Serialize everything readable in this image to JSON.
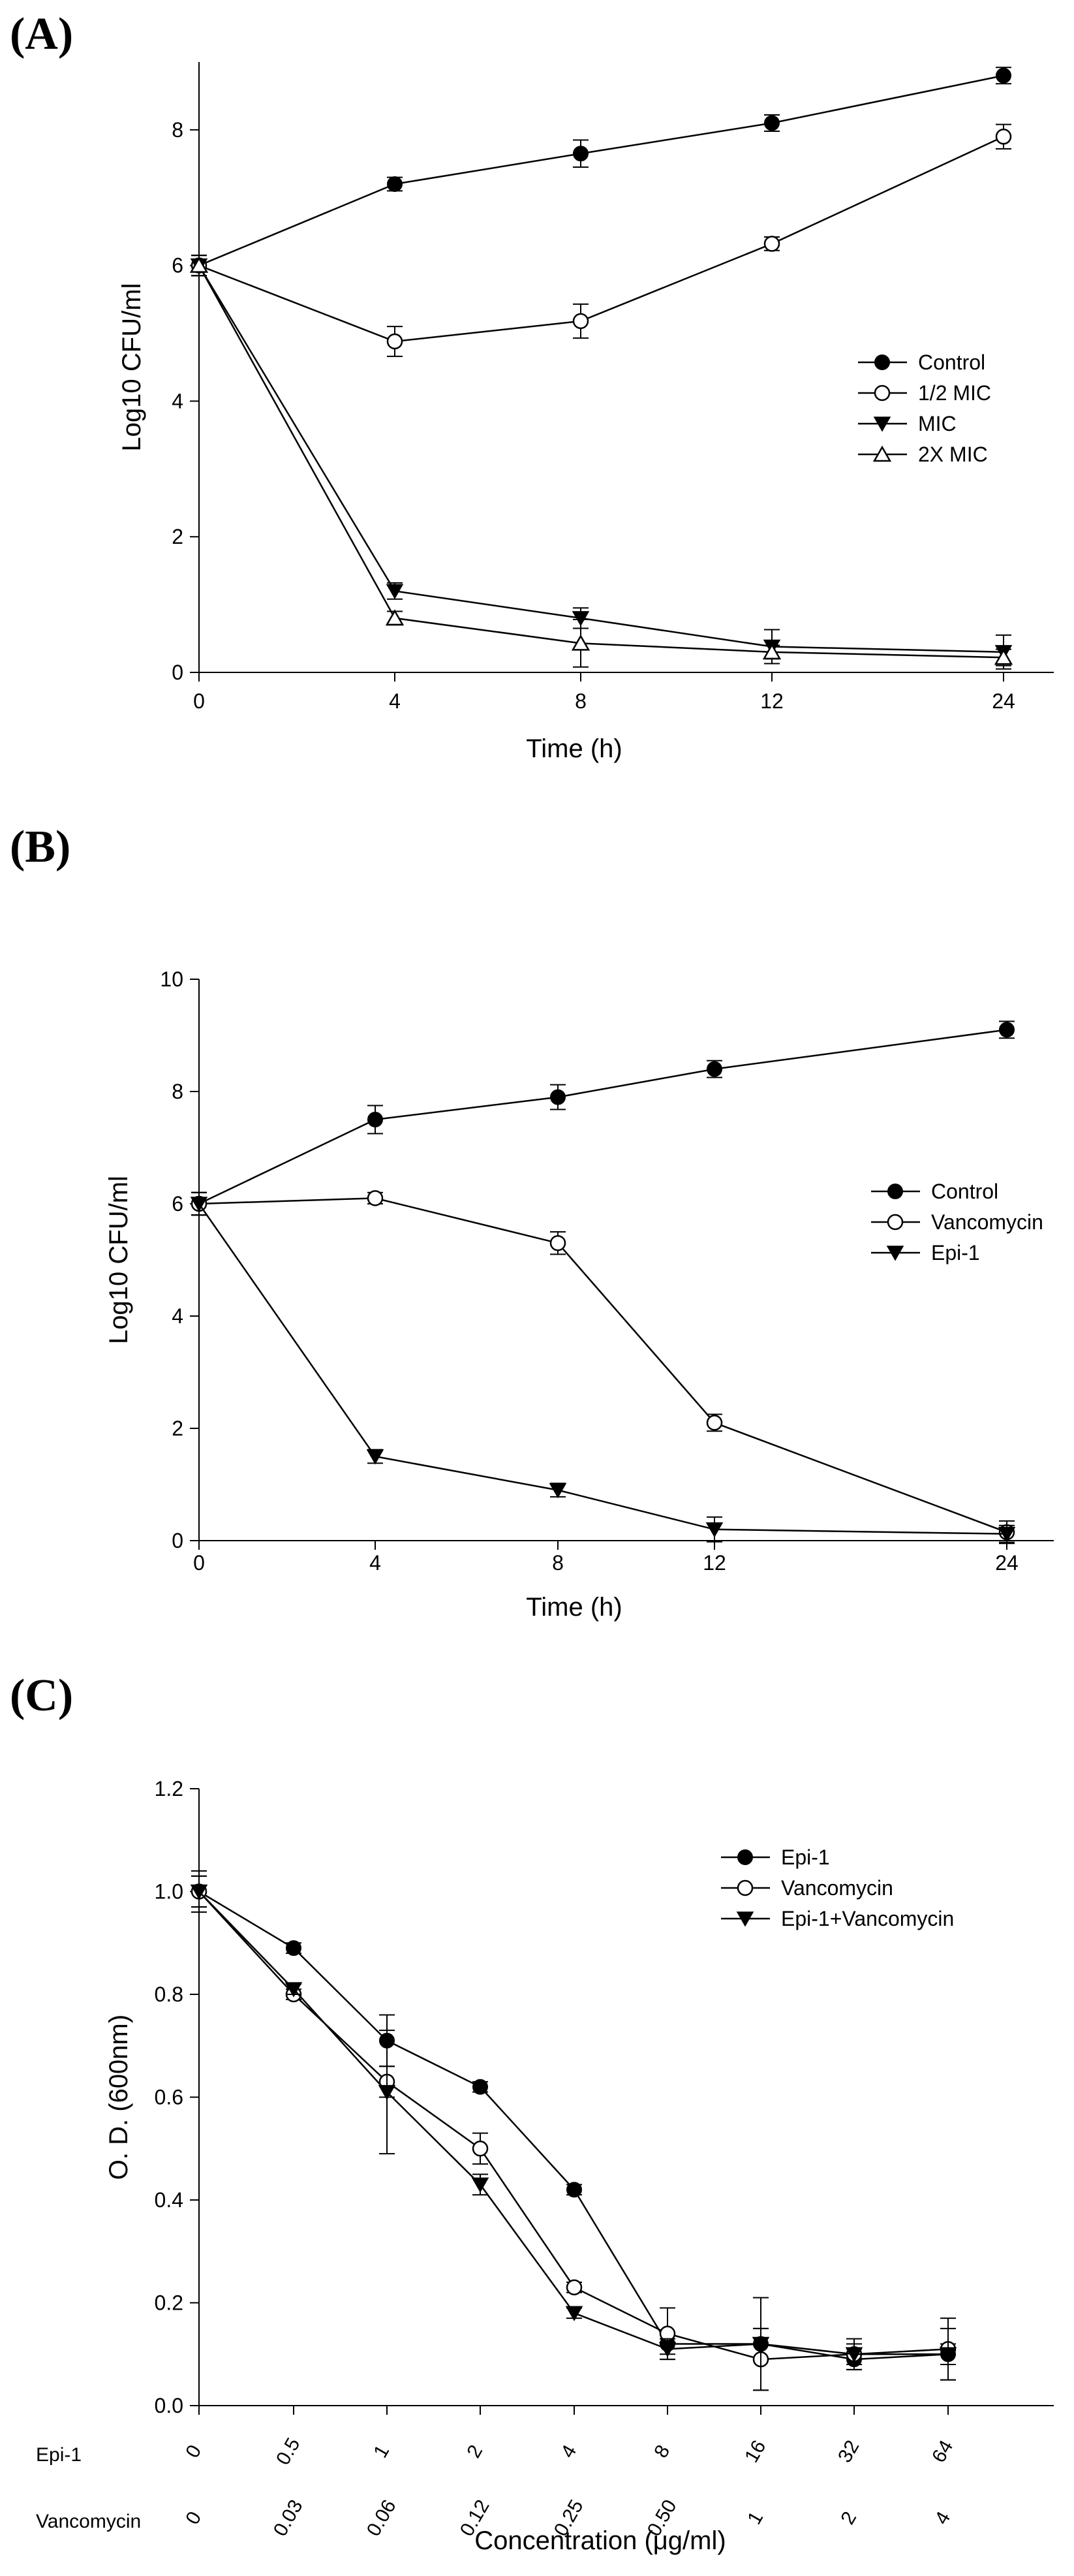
{
  "chart_data": [
    {
      "panel": "(A)",
      "type": "line",
      "xlabel": "Time (h)",
      "ylabel": "Log10 CFU/ml",
      "ylim": [
        0,
        9
      ],
      "y_ticks": [
        0,
        2,
        4,
        6,
        8
      ],
      "categories": [
        "0",
        "4",
        "8",
        "12",
        "24"
      ],
      "legend_position": "right",
      "series": [
        {
          "name": "Control",
          "marker": "filled-circle",
          "values": [
            6.0,
            7.2,
            7.65,
            8.1,
            8.8
          ],
          "errors": [
            0.15,
            0.1,
            0.2,
            0.12,
            0.12
          ]
        },
        {
          "name": "1/2 MIC",
          "marker": "open-circle",
          "values": [
            6.0,
            4.88,
            5.18,
            6.32,
            7.9
          ],
          "errors": [
            0.15,
            0.22,
            0.25,
            0.1,
            0.18
          ]
        },
        {
          "name": "MIC",
          "marker": "filled-triangle-down",
          "values": [
            6.0,
            1.2,
            0.8,
            0.38,
            0.3
          ],
          "errors": [
            0.15,
            0.12,
            0.15,
            0.25,
            0.25
          ]
        },
        {
          "name": "2X MIC",
          "marker": "open-triangle-up",
          "values": [
            6.0,
            0.8,
            0.43,
            0.3,
            0.22
          ],
          "errors": [
            0.15,
            0.1,
            0.35,
            0.1,
            0.12
          ]
        }
      ]
    },
    {
      "panel": "(B)",
      "type": "line",
      "xlabel": "Time (h)",
      "ylabel": "Log10 CFU/ml",
      "ylim": [
        0,
        10
      ],
      "y_ticks": [
        0,
        2,
        4,
        6,
        8,
        10
      ],
      "categories": [
        "0",
        "4",
        "8",
        "12",
        "24"
      ],
      "legend_position": "right",
      "series": [
        {
          "name": "Control",
          "marker": "filled-circle",
          "values": [
            6.0,
            7.5,
            7.9,
            8.4,
            9.1
          ],
          "errors": [
            0.2,
            0.25,
            0.22,
            0.15,
            0.15
          ]
        },
        {
          "name": "Vancomycin",
          "marker": "open-circle",
          "values": [
            6.0,
            6.1,
            5.3,
            2.1,
            0.15
          ],
          "errors": [
            0.2,
            0.1,
            0.2,
            0.15,
            0.2
          ]
        },
        {
          "name": "Epi-1",
          "marker": "filled-triangle-down",
          "values": [
            6.0,
            1.5,
            0.9,
            0.2,
            0.12
          ],
          "errors": [
            0.2,
            0.12,
            0.12,
            0.22,
            0.15
          ]
        }
      ]
    },
    {
      "panel": "(C)",
      "type": "line",
      "xlabel": "Concentration (μg/ml)",
      "ylabel": "O. D. (600nm)",
      "ylim": [
        0,
        1.2
      ],
      "y_ticks": [
        "0.0",
        "0.2",
        "0.4",
        "0.6",
        "0.8",
        "1.0",
        "1.2"
      ],
      "categories": [
        "0",
        "0.5",
        "1",
        "2",
        "4",
        "8",
        "16",
        "32",
        "64"
      ],
      "category_rows": [
        {
          "label": "Epi-1",
          "ticks": [
            "0",
            "0.5",
            "1",
            "2",
            "4",
            "8",
            "16",
            "32",
            "64"
          ]
        },
        {
          "label": "Vancomycin",
          "ticks": [
            "0",
            "0.03",
            "0.06",
            "0.12",
            "0.25",
            "0.50",
            "1",
            "2",
            "4"
          ]
        }
      ],
      "legend_position": "top-right",
      "series": [
        {
          "name": "Epi-1",
          "marker": "filled-circle",
          "values": [
            1.0,
            0.89,
            0.71,
            0.62,
            0.42,
            0.12,
            0.12,
            0.09,
            0.1
          ],
          "errors": [
            0.03,
            0.01,
            0.05,
            0.01,
            0.01,
            0.02,
            0.03,
            0.02,
            0.02
          ]
        },
        {
          "name": "Vancomycin",
          "marker": "open-circle",
          "values": [
            1.0,
            0.8,
            0.63,
            0.5,
            0.23,
            0.14,
            0.09,
            0.1,
            0.11
          ],
          "errors": [
            0.03,
            0.01,
            0.03,
            0.03,
            0.01,
            0.05,
            0.06,
            0.03,
            0.06
          ]
        },
        {
          "name": "Epi-1+Vancomycin",
          "marker": "filled-triangle-down",
          "values": [
            1.0,
            0.81,
            0.61,
            0.43,
            0.18,
            0.11,
            0.12,
            0.1,
            0.1
          ],
          "errors": [
            0.04,
            0.01,
            0.12,
            0.02,
            0.01,
            0.02,
            0.09,
            0.02,
            0.05
          ]
        }
      ]
    }
  ]
}
